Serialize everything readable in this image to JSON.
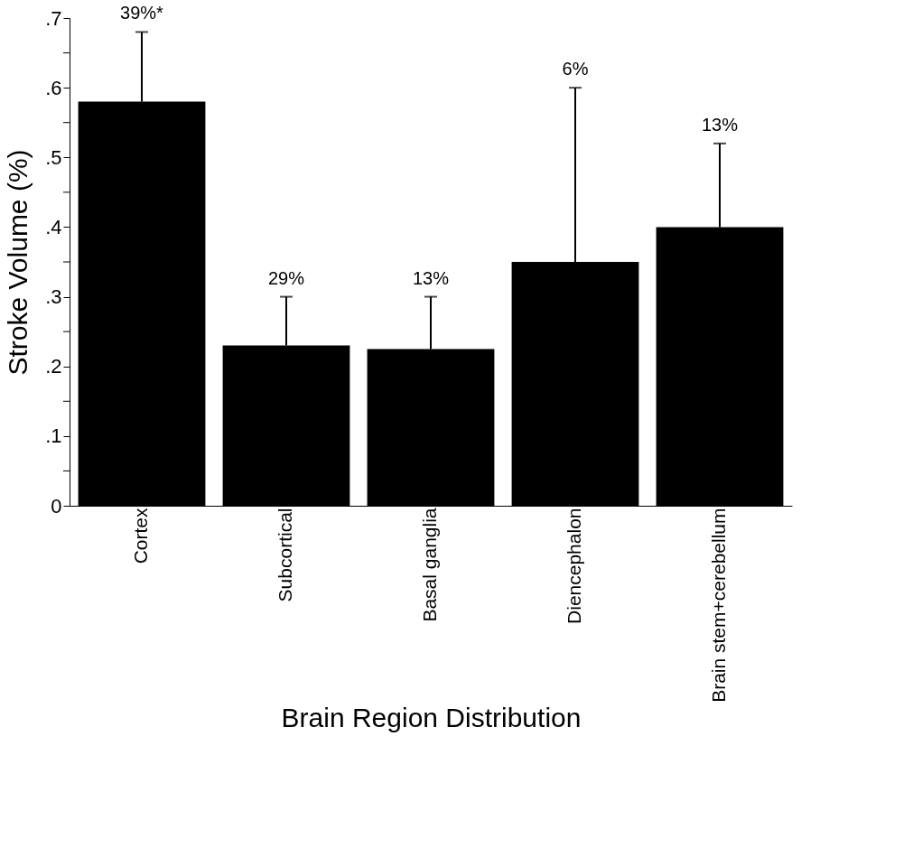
{
  "chart_data": {
    "type": "bar",
    "xlabel": "Brain Region Distribution",
    "ylabel": "Stroke Volume (%)",
    "categories": [
      "Cortex",
      "Subcortical",
      "Basal ganglia",
      "Diencephalon",
      "Brain stem+cerebellum"
    ],
    "values": [
      0.58,
      0.23,
      0.225,
      0.35,
      0.4
    ],
    "color": "#000000",
    "errors": [
      [
        0.58,
        0.68
      ],
      [
        0.23,
        0.3
      ],
      [
        0.225,
        0.3
      ],
      [
        0.35,
        0.6
      ],
      [
        0.4,
        0.52
      ]
    ],
    "annotations": [
      {
        "text": "39%*",
        "x": "Cortex",
        "y": 0.68
      },
      {
        "text": "29%",
        "x": "Subcortical",
        "y": 0.3
      },
      {
        "text": "13%",
        "x": "Basal ganglia",
        "y": 0.3
      },
      {
        "text": "6%",
        "x": "Diencephalon",
        "y": 0.6
      },
      {
        "text": "13%",
        "x": "Brain stem+cerebellum",
        "y": 0.52
      }
    ],
    "ylim": [
      0,
      0.7
    ],
    "yticks": [
      {
        "value": 0,
        "label": "0"
      },
      {
        "value": 0.05,
        "label": null
      },
      {
        "value": 0.1,
        "label": ".1"
      },
      {
        "value": 0.15,
        "label": null
      },
      {
        "value": 0.2,
        "label": ".2"
      },
      {
        "value": 0.25,
        "label": null
      },
      {
        "value": 0.3,
        "label": ".3"
      },
      {
        "value": 0.35,
        "label": null
      },
      {
        "value": 0.4,
        "label": ".4"
      },
      {
        "value": 0.45,
        "label": null
      },
      {
        "value": 0.5,
        "label": ".5"
      },
      {
        "value": 0.55,
        "label": null
      },
      {
        "value": 0.6,
        "label": ".6"
      },
      {
        "value": 0.65,
        "label": null
      },
      {
        "value": 0.7,
        "label": ".7"
      }
    ],
    "grid": false
  }
}
